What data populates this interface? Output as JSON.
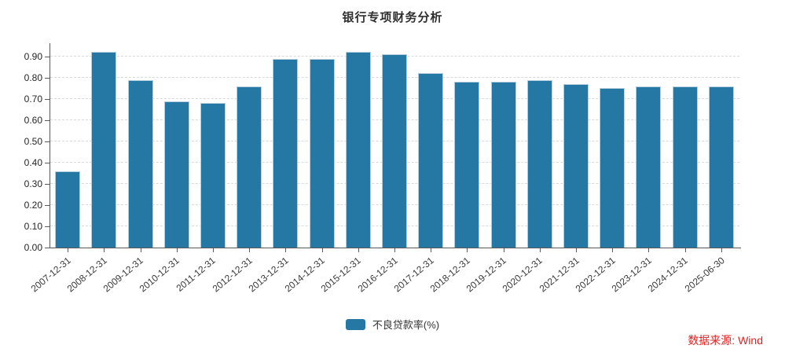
{
  "title": "银行专项财务分析",
  "chart_data": {
    "type": "bar",
    "title": "银行专项财务分析",
    "categories": [
      "2007-12-31",
      "2008-12-31",
      "2009-12-31",
      "2010-12-31",
      "2011-12-31",
      "2012-12-31",
      "2013-12-31",
      "2014-12-31",
      "2015-12-31",
      "2016-12-31",
      "2017-12-31",
      "2018-12-31",
      "2019-12-31",
      "2020-12-31",
      "2021-12-31",
      "2022-12-31",
      "2023-12-31",
      "2024-12-31",
      "2025-06-30"
    ],
    "series": [
      {
        "name": "不良贷款率(%)",
        "values": [
          0.36,
          0.92,
          0.79,
          0.69,
          0.68,
          0.76,
          0.89,
          0.89,
          0.92,
          0.91,
          0.82,
          0.78,
          0.78,
          0.79,
          0.77,
          0.75,
          0.76,
          0.76,
          0.76
        ]
      }
    ],
    "xlabel": "",
    "ylabel": "",
    "ylim": [
      0,
      0.9625
    ],
    "yticks": [
      0.0,
      0.1,
      0.2,
      0.3,
      0.4,
      0.5,
      0.6,
      0.7,
      0.8,
      0.9
    ],
    "ytick_labels": [
      "0.00",
      "0.10",
      "0.20",
      "0.30",
      "0.40",
      "0.50",
      "0.60",
      "0.70",
      "0.80",
      "0.90"
    ],
    "grid": "horizontal-dashed",
    "legend_position": "bottom",
    "x_label_rotation_deg": -40,
    "bar_color": "#2478a3",
    "bar_border_color": "#b7cedd",
    "grid_color": "#d9d9d9",
    "axis_color": "#595959"
  },
  "legend": {
    "items": [
      {
        "label": "不良贷款率(%)",
        "color": "#2478a3"
      }
    ]
  },
  "source": {
    "text": "数据来源: Wind",
    "color": "#e02222"
  }
}
